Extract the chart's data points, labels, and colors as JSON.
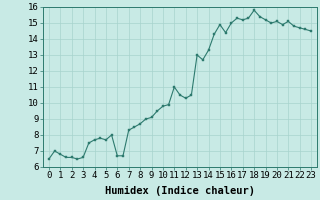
{
  "xlabel": "Humidex (Indice chaleur)",
  "x_values": [
    0,
    0.5,
    1,
    1.5,
    2,
    2.5,
    3,
    3.5,
    4,
    4.5,
    5,
    5.5,
    6,
    6.5,
    7,
    7.5,
    8,
    8.5,
    9,
    9.5,
    10,
    10.5,
    11,
    11.5,
    12,
    12.5,
    13,
    13.5,
    14,
    14.5,
    15,
    15.5,
    16,
    16.5,
    17,
    17.5,
    18,
    18.5,
    19,
    19.5,
    20,
    20.5,
    21,
    21.5,
    22,
    22.5,
    23
  ],
  "y_values": [
    6.5,
    7.0,
    6.8,
    6.6,
    6.6,
    6.5,
    6.6,
    7.5,
    7.7,
    7.8,
    7.7,
    8.0,
    6.7,
    6.7,
    8.3,
    8.5,
    8.7,
    9.0,
    9.1,
    9.5,
    9.8,
    9.9,
    11.0,
    10.5,
    10.3,
    10.5,
    13.0,
    12.7,
    13.3,
    14.3,
    14.9,
    14.4,
    15.0,
    15.3,
    15.2,
    15.3,
    15.8,
    15.4,
    15.2,
    15.0,
    15.1,
    14.9,
    15.1,
    14.8,
    14.7,
    14.6,
    14.5
  ],
  "xlim": [
    -0.5,
    23.5
  ],
  "ylim": [
    6,
    16
  ],
  "xticks": [
    0,
    1,
    2,
    3,
    4,
    5,
    6,
    7,
    8,
    9,
    10,
    11,
    12,
    13,
    14,
    15,
    16,
    17,
    18,
    19,
    20,
    21,
    22,
    23
  ],
  "yticks": [
    6,
    7,
    8,
    9,
    10,
    11,
    12,
    13,
    14,
    15,
    16
  ],
  "line_color": "#2d7a6e",
  "marker_color": "#2d7a6e",
  "bg_color": "#c8eae5",
  "grid_color": "#a8d4ce",
  "xlabel_fontsize": 7.5,
  "tick_fontsize": 6.5
}
